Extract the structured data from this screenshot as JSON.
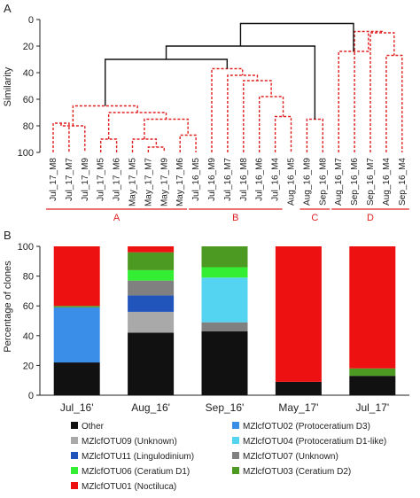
{
  "chart_data": [
    {
      "type": "dendrogram",
      "panel_label": "A",
      "ylabel": "Similarity",
      "ylim": [
        0,
        100
      ],
      "y_ticks": [
        "0",
        "20",
        "40",
        "60",
        "80",
        "100"
      ],
      "leaves": [
        "Jul_17_M8",
        "Jul_17_M7",
        "Jul_17_M9",
        "Jul_17_M5",
        "Jul_17_M6",
        "May_17_M5",
        "May_17_M7",
        "May_17_M9",
        "May_17_M6",
        "Jul_16_M5",
        "Jul_16_M9",
        "Jul_16_M7",
        "Jul_16_M8",
        "Jul_16_M6",
        "Jul_16_M4",
        "Aug_16_M5",
        "Aug_16_M9",
        "Sep_16_M8",
        "Aug_16_M7",
        "Sep_16_M6",
        "Sep_16_M7",
        "Aug_16_M4",
        "Sep_16_M4"
      ],
      "merges": [
        {
          "a": "L0",
          "b": "L1",
          "similarity": 78,
          "color": "red"
        },
        {
          "a": "L1",
          "b": "L2",
          "similarity": 80,
          "color": "red"
        },
        {
          "a": "L3",
          "b": "L4",
          "similarity": 90,
          "color": "red"
        },
        {
          "a": "L6",
          "b": "L7",
          "similarity": 96,
          "color": "red"
        },
        {
          "a": "L5",
          "b": "L6",
          "similarity": 90,
          "color": "red"
        },
        {
          "a": "L8",
          "b": "L9",
          "similarity": 87,
          "color": "red"
        },
        {
          "a": "L5",
          "b": "L8",
          "similarity": 75,
          "color": "red"
        },
        {
          "a": "L3",
          "b": "L5",
          "similarity": 70,
          "color": "red"
        },
        {
          "a": "L0",
          "b": "L3",
          "similarity": 65,
          "color": "red"
        },
        {
          "a": "L14",
          "b": "L15",
          "similarity": 73,
          "color": "red"
        },
        {
          "a": "L13",
          "b": "L14",
          "similarity": 58,
          "color": "red"
        },
        {
          "a": "L12",
          "b": "L13",
          "similarity": 46,
          "color": "red"
        },
        {
          "a": "L11",
          "b": "L12",
          "similarity": 42,
          "color": "red"
        },
        {
          "a": "L10",
          "b": "L11",
          "similarity": 37,
          "color": "red"
        },
        {
          "a": "L0",
          "b": "L10",
          "similarity": 30,
          "color": "black"
        },
        {
          "a": "L16",
          "b": "L17",
          "similarity": 75,
          "color": "red"
        },
        {
          "a": "L15",
          "b": "L16",
          "similarity": 20,
          "color": "black"
        },
        {
          "a": "L21",
          "b": "L22",
          "similarity": 27,
          "color": "red"
        },
        {
          "a": "L20",
          "b": "L21",
          "similarity": 10,
          "color": "red"
        },
        {
          "a": "L19",
          "b": "L20",
          "similarity": 9,
          "color": "red"
        },
        {
          "a": "L18",
          "b": "L19",
          "similarity": 24,
          "color": "red"
        },
        {
          "a": "L18",
          "b": "L19b",
          "similarity": 5,
          "color": "red"
        },
        {
          "a": "L15",
          "b": "L18",
          "similarity": 3,
          "color": "black"
        },
        {
          "a": "L0",
          "b": "L15",
          "similarity": 12,
          "color": "black"
        }
      ],
      "groups": [
        {
          "label": "A",
          "from": 0,
          "to": 8
        },
        {
          "label": "B",
          "from": 9,
          "to": 14
        },
        {
          "label": "C",
          "from": 16,
          "to": 17
        },
        {
          "label": "D",
          "from": 18,
          "to": 22
        }
      ]
    },
    {
      "type": "bar",
      "stacked": true,
      "panel_label": "B",
      "ylabel": "Percentage of clones",
      "ylim": [
        0,
        100
      ],
      "y_ticks": [
        "0",
        "20",
        "40",
        "60",
        "80",
        "100"
      ],
      "categories": [
        "Jul_16'",
        "Aug_16'",
        "Sep_16'",
        "May_17'",
        "Jul_17'"
      ],
      "series": [
        {
          "name": "Other",
          "color": "#111111",
          "values": [
            22,
            42,
            43,
            9,
            13
          ]
        },
        {
          "name": "MZlcfOTU09 (Unknown)",
          "color": "#a9a9a9",
          "values": [
            0,
            14,
            0,
            0,
            0
          ]
        },
        {
          "name": "MZlcfOTU11 (Lingulodinium)",
          "color": "#2255bb",
          "values": [
            0,
            11,
            0,
            0,
            0
          ]
        },
        {
          "name": "MZlcfOTU07 (Unknown)",
          "color": "#808080",
          "values": [
            0,
            10,
            6,
            0,
            0
          ]
        },
        {
          "name": "MZlcfOTU02 (Protoceratium D3)",
          "color": "#3b8ee8",
          "values": [
            37,
            0,
            0,
            0,
            0
          ]
        },
        {
          "name": "MZlcfOTU04 (Protoceratium D1-like)",
          "color": "#55d4f2",
          "values": [
            0,
            0,
            30,
            0,
            0
          ]
        },
        {
          "name": "MZlcfOTU06 (Ceratium D1)",
          "color": "#33ee33",
          "values": [
            0,
            7,
            7,
            0,
            0
          ]
        },
        {
          "name": "MZlcfOTU03 (Ceratium D2)",
          "color": "#4c9a22",
          "values": [
            1,
            12,
            14,
            0,
            5
          ]
        },
        {
          "name": "MZlcfOTU01 (Noctiluca)",
          "color": "#ee1111",
          "values": [
            40,
            4,
            0,
            91,
            82
          ]
        }
      ],
      "legend_placement": "bottom",
      "legend_order": [
        "Other",
        "MZlcfOTU02 (Protoceratium D3)",
        "MZlcfOTU09 (Unknown)",
        "MZlcfOTU04 (Protoceratium D1-like)",
        "MZlcfOTU11 (Lingulodinium)",
        "MZlcfOTU07 (Unknown)",
        "MZlcfOTU06 (Ceratium D1)",
        "MZlcfOTU03 (Ceratium D2)",
        "MZlcfOTU01 (Noctiluca)"
      ]
    }
  ]
}
